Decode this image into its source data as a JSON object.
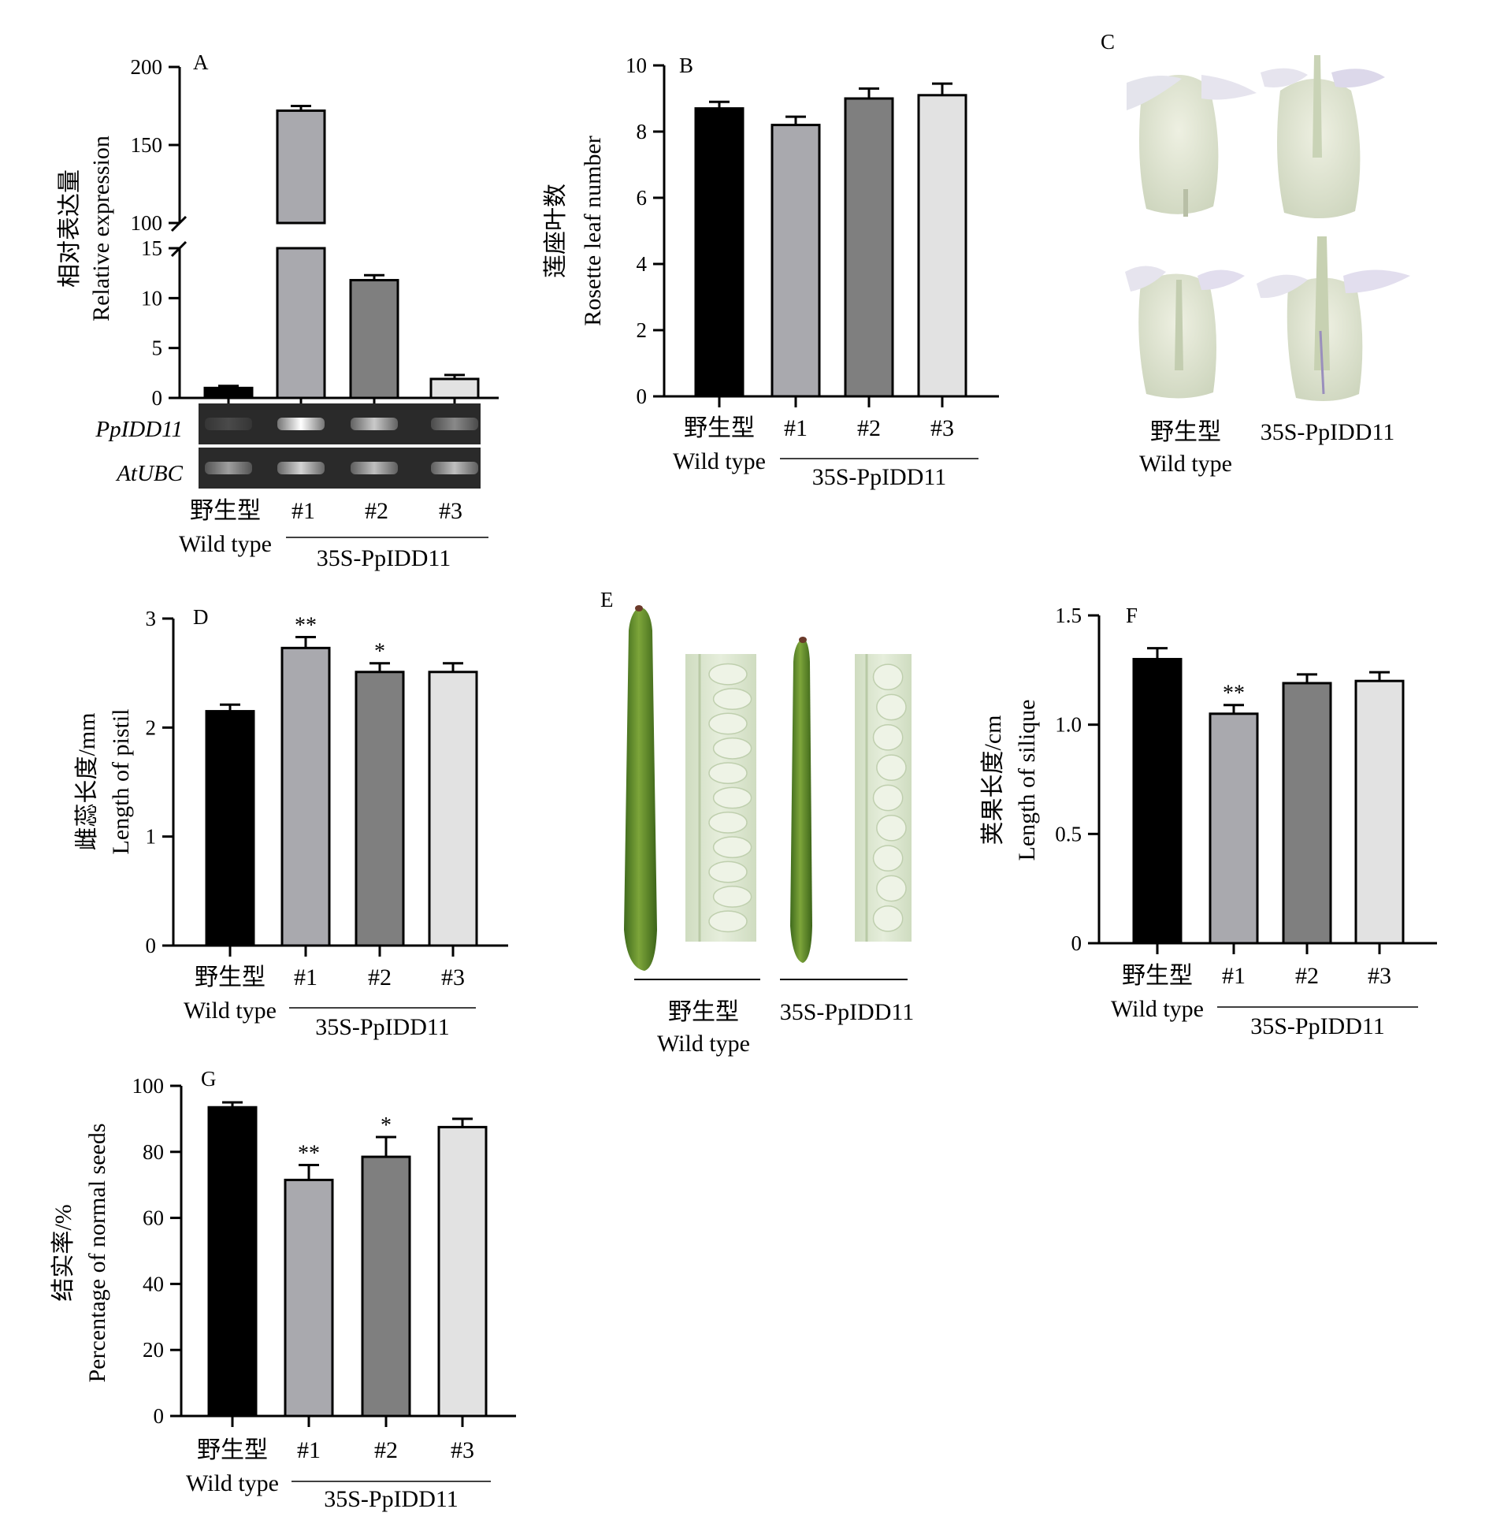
{
  "figure": {
    "group_label": "35S-PpIDD11",
    "wt_cn": "野生型",
    "wt_en": "Wild type"
  },
  "panels": {
    "A": {
      "letter": "A",
      "ylabel_cn": "相对表达量",
      "ylabel_en": "Relative expression",
      "gel_labels": [
        "PpIDD11",
        "AtUBC"
      ]
    },
    "C": {
      "letter": "C",
      "labels": {
        "wt_cn": "野生型",
        "wt_en": "Wild type",
        "oe": "35S-PpIDD11"
      }
    },
    "E": {
      "letter": "E",
      "labels": {
        "wt_cn": "野生型",
        "wt_en": "Wild type",
        "oe": "35S-PpIDD11"
      }
    }
  },
  "chart_data": [
    {
      "id": "A",
      "type": "bar",
      "categories": [
        "野生型",
        "#1",
        "#2",
        "#3"
      ],
      "values": [
        1.0,
        172,
        11.8,
        1.9
      ],
      "errors": [
        0.2,
        3,
        0.5,
        0.4
      ],
      "significance": [
        "",
        "",
        "",
        ""
      ],
      "axis_break": {
        "lower": [
          0,
          15
        ],
        "upper": [
          100,
          200
        ]
      },
      "yticks_lower": [
        0,
        5,
        10,
        15
      ],
      "yticks_upper": [
        100,
        150,
        200
      ],
      "bar_colors": [
        "#000000",
        "#a9a9ae",
        "#7f7f7f",
        "#e2e2e2"
      ]
    },
    {
      "id": "B",
      "letter": "B",
      "type": "bar",
      "categories": [
        "野生型",
        "#1",
        "#2",
        "#3"
      ],
      "values": [
        8.7,
        8.2,
        9.0,
        9.1
      ],
      "errors": [
        0.2,
        0.25,
        0.3,
        0.35
      ],
      "significance": [
        "",
        "",
        "",
        ""
      ],
      "ylim": [
        0,
        10
      ],
      "yticks": [
        0,
        2,
        4,
        6,
        8,
        10
      ],
      "ylabel_cn": "莲座叶数",
      "ylabel_en": "Rosette leaf number",
      "bar_colors": [
        "#000000",
        "#a9a9ae",
        "#7f7f7f",
        "#e2e2e2"
      ]
    },
    {
      "id": "D",
      "letter": "D",
      "type": "bar",
      "categories": [
        "野生型",
        "#1",
        "#2",
        "#3"
      ],
      "values": [
        2.15,
        2.73,
        2.51,
        2.51
      ],
      "errors": [
        0.06,
        0.1,
        0.08,
        0.08
      ],
      "significance": [
        "",
        "**",
        "*",
        ""
      ],
      "ylim": [
        0,
        3
      ],
      "yticks": [
        0,
        1,
        2,
        3
      ],
      "ylabel_cn": "雌蕊长度/mm",
      "ylabel_en": "Length of pistil",
      "bar_colors": [
        "#000000",
        "#a9a9ae",
        "#7f7f7f",
        "#e2e2e2"
      ]
    },
    {
      "id": "F",
      "letter": "F",
      "type": "bar",
      "categories": [
        "野生型",
        "#1",
        "#2",
        "#3"
      ],
      "values": [
        1.3,
        1.05,
        1.19,
        1.2
      ],
      "errors": [
        0.05,
        0.04,
        0.04,
        0.04
      ],
      "significance": [
        "",
        "**",
        "",
        ""
      ],
      "ylim": [
        0,
        1.5
      ],
      "yticks": [
        0,
        0.5,
        1.0,
        1.5
      ],
      "ytick_labels": [
        "0",
        "0.5",
        "1.0",
        "1.5"
      ],
      "ylabel_cn": "荚果长度/cm",
      "ylabel_en": "Length of silique",
      "bar_colors": [
        "#000000",
        "#a9a9ae",
        "#7f7f7f",
        "#e2e2e2"
      ]
    },
    {
      "id": "G",
      "letter": "G",
      "type": "bar",
      "categories": [
        "野生型",
        "#1",
        "#2",
        "#3"
      ],
      "values": [
        93.5,
        71.5,
        78.5,
        87.5
      ],
      "errors": [
        1.5,
        4.5,
        6,
        2.5
      ],
      "significance": [
        "",
        "**",
        "*",
        ""
      ],
      "ylim": [
        0,
        100
      ],
      "yticks": [
        0,
        20,
        40,
        60,
        80,
        100
      ],
      "ylabel_cn": "结实率/%",
      "ylabel_en": "Percentage of normal seeds",
      "bar_colors": [
        "#000000",
        "#a9a9ae",
        "#7f7f7f",
        "#e2e2e2"
      ]
    }
  ]
}
